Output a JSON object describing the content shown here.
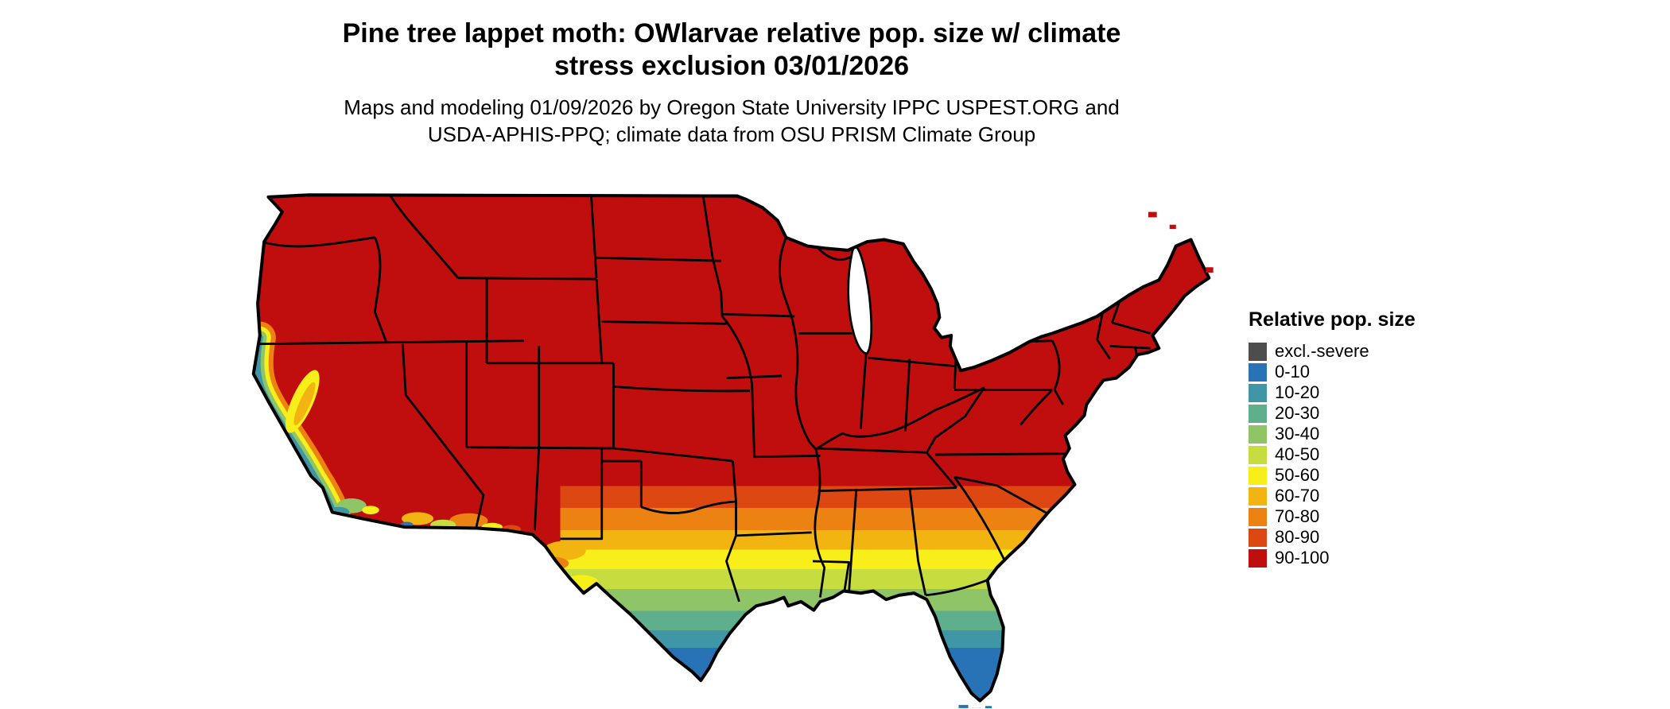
{
  "header": {
    "title_line1": "Pine tree lappet moth: OWlarvae relative pop. size w/ climate",
    "title_line2": "stress exclusion 03/01/2026",
    "subtitle_line1": "Maps and modeling 01/09/2026 by Oregon State University IPPC USPEST.ORG and",
    "subtitle_line2": "USDA-APHIS-PPQ; climate data from OSU PRISM Climate Group"
  },
  "legend": {
    "title": "Relative pop. size",
    "items": [
      {
        "label": "excl.-severe",
        "color": "#4D4D4D"
      },
      {
        "label": "0-10",
        "color": "#2873B5"
      },
      {
        "label": "10-20",
        "color": "#3F96A6"
      },
      {
        "label": "20-30",
        "color": "#5FAE8C"
      },
      {
        "label": "30-40",
        "color": "#90C567"
      },
      {
        "label": "40-50",
        "color": "#C6DC3F"
      },
      {
        "label": "50-60",
        "color": "#F7EE1A"
      },
      {
        "label": "60-70",
        "color": "#F2B410"
      },
      {
        "label": "70-80",
        "color": "#EC8211"
      },
      {
        "label": "80-90",
        "color": "#DC4712"
      },
      {
        "label": "90-100",
        "color": "#C00D0D"
      }
    ]
  },
  "map": {
    "border_color": "#000000",
    "water_color": "#FFFFFF",
    "dominant_band": "90-100"
  }
}
